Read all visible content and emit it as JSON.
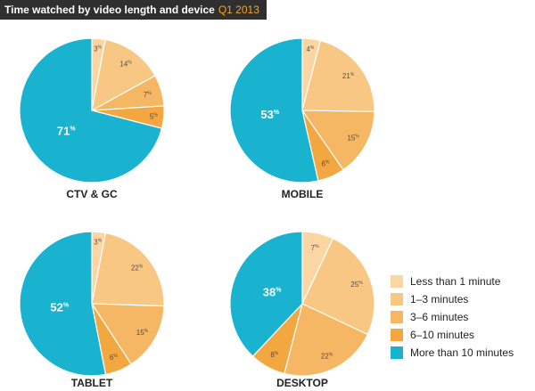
{
  "title": {
    "main": "Time watched by video length and device",
    "accent": "Q1 2013"
  },
  "colors": [
    "#fbd6a2",
    "#f9c784",
    "#f6b765",
    "#f3a741",
    "#1ab3cf"
  ],
  "chart_data": {
    "type": "pie",
    "categories": [
      "Less than 1 minute",
      "1–3 minutes",
      "3–6 minutes",
      "6–10 minutes",
      "More than 10 minutes"
    ],
    "charts": [
      {
        "name": "CTV & GC",
        "values": [
          3,
          14,
          7,
          5,
          71
        ],
        "labels": [
          "3",
          "14",
          "7",
          "5",
          "71"
        ]
      },
      {
        "name": "MOBILE",
        "values": [
          4,
          21,
          15,
          6,
          53
        ],
        "labels": [
          "4",
          "21",
          "15",
          "6",
          "53"
        ]
      },
      {
        "name": "TABLET",
        "values": [
          3,
          22,
          15,
          6,
          52
        ],
        "labels": [
          "3",
          "22",
          "15",
          "6",
          "52"
        ]
      },
      {
        "name": "DESKTOP",
        "values": [
          7,
          25,
          22,
          8,
          38
        ],
        "labels": [
          "7",
          "25",
          "22",
          "8",
          "38"
        ]
      }
    ],
    "percent_sign": "%"
  }
}
